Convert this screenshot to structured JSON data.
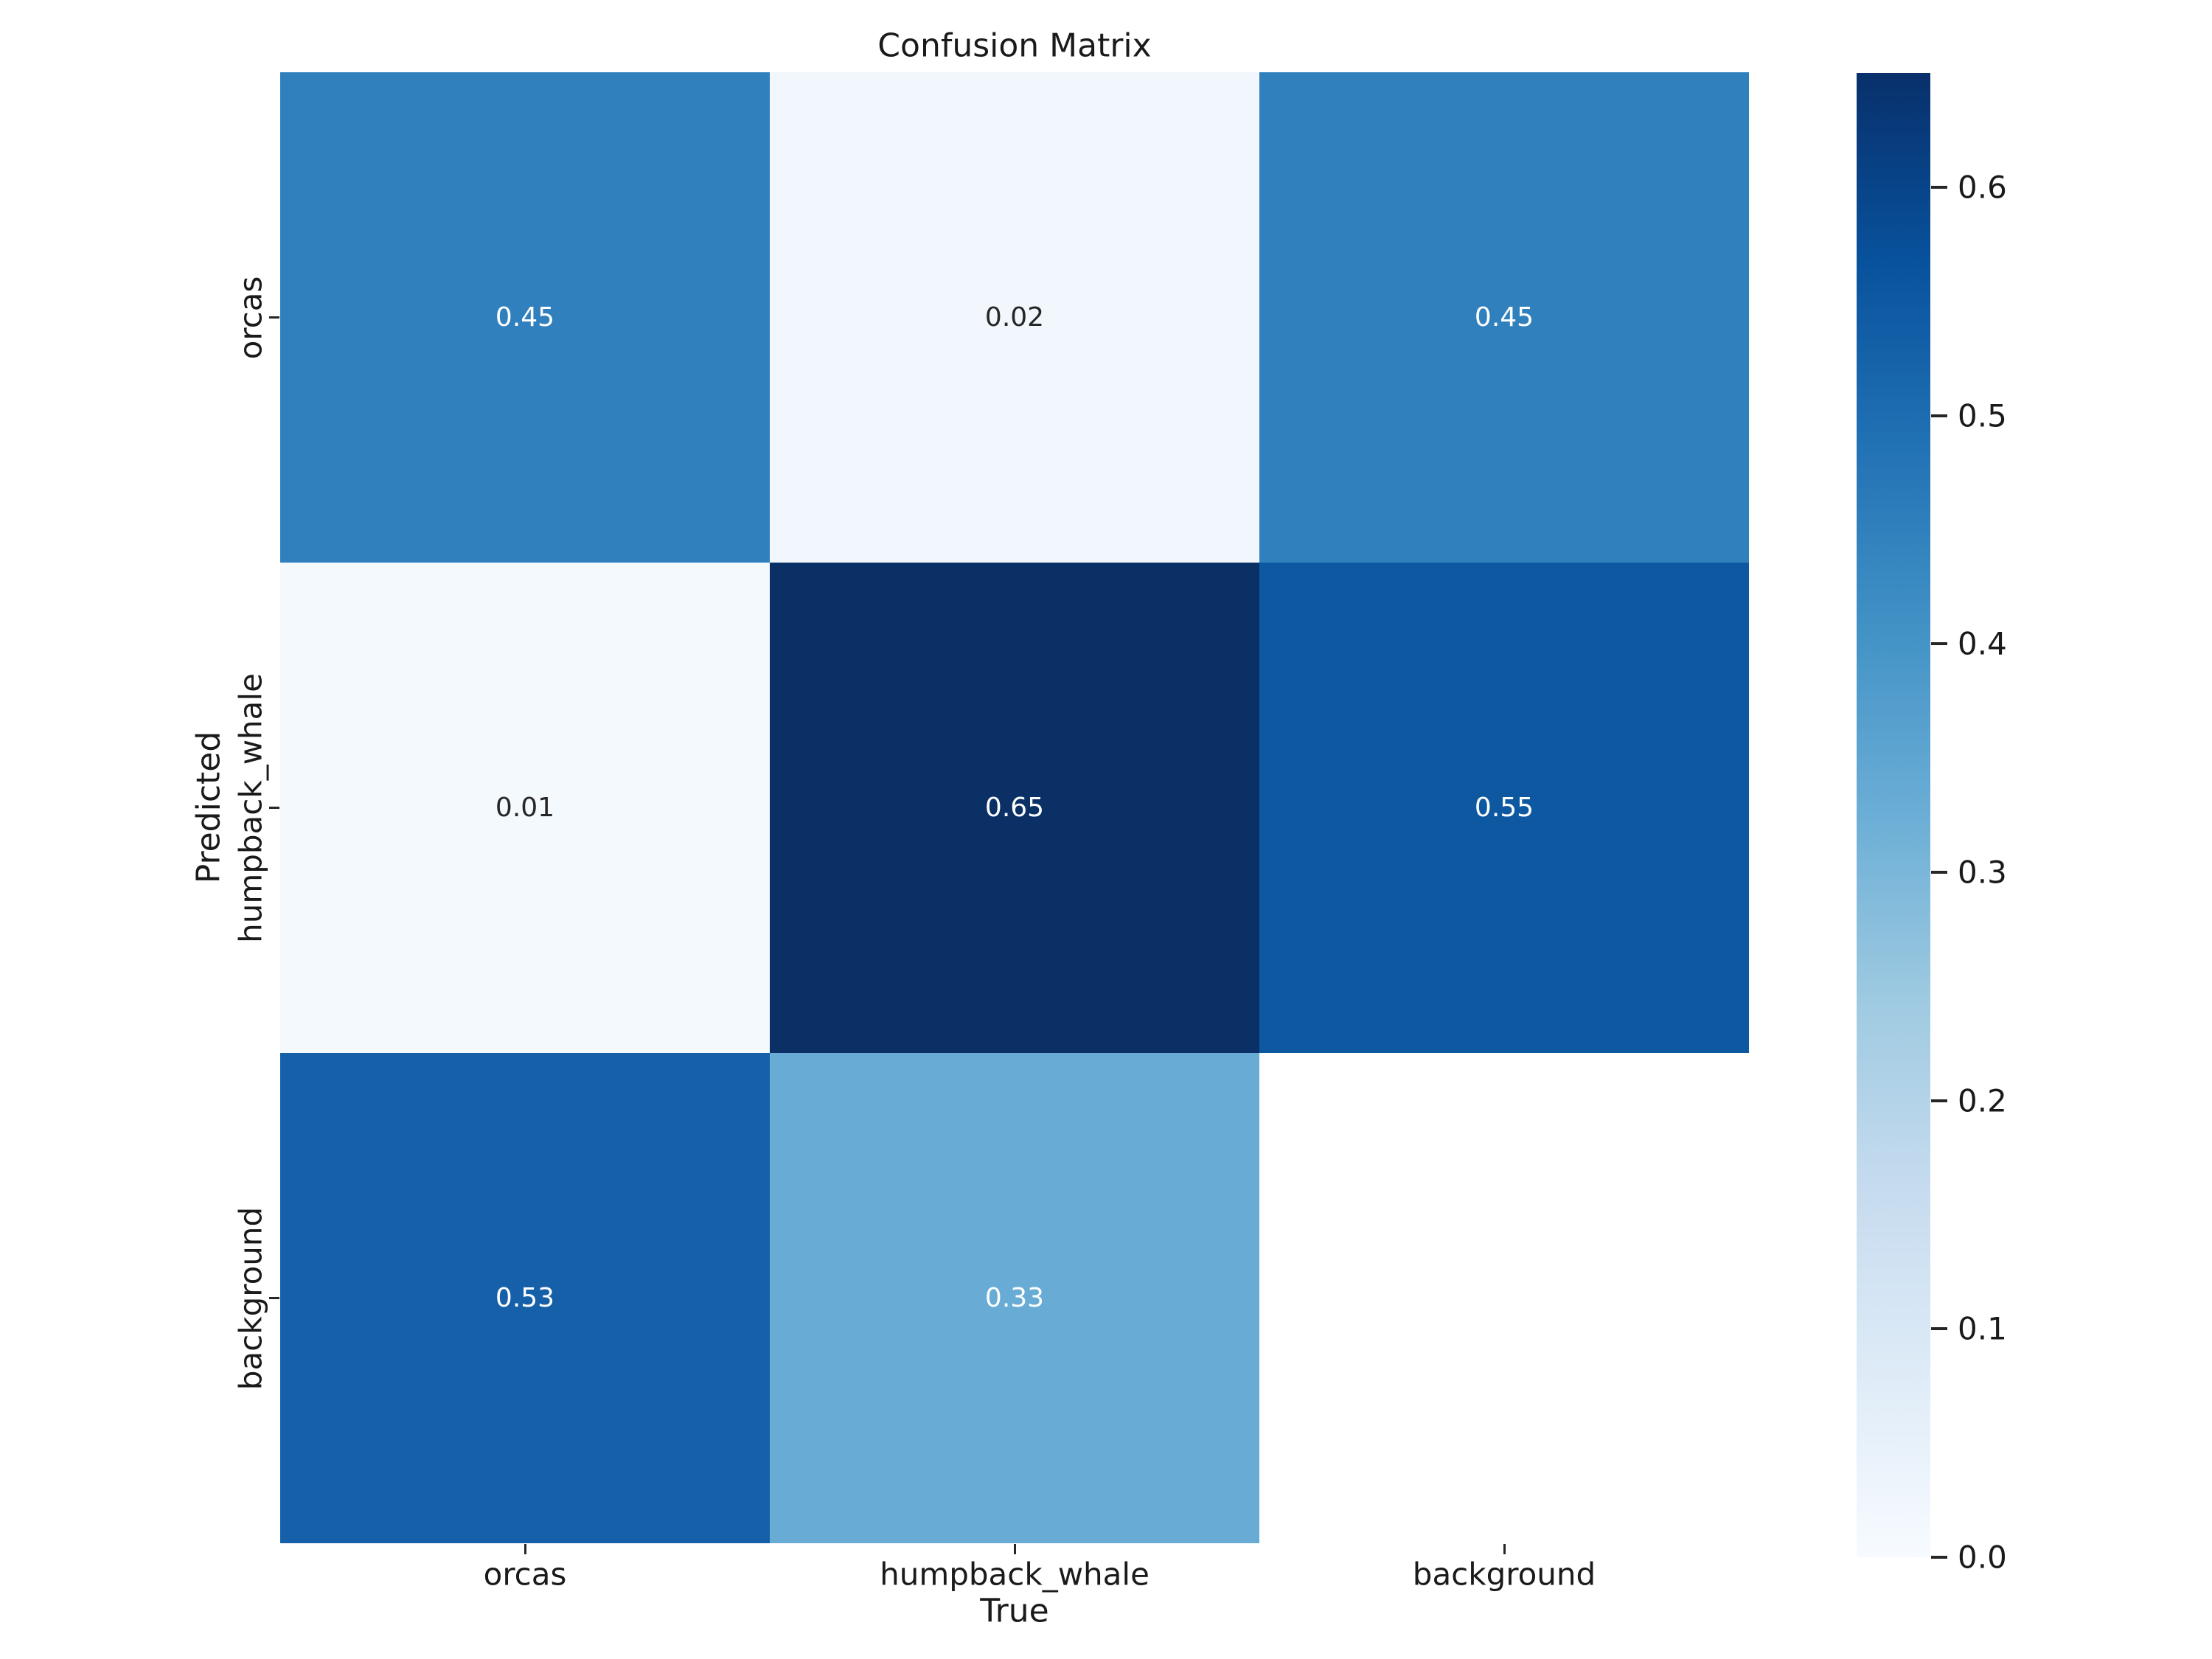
{
  "chart_data": {
    "type": "heatmap",
    "title": "Confusion Matrix",
    "xlabel": "True",
    "ylabel": "Predicted",
    "x_categories": [
      "orcas",
      "humpback_whale",
      "background"
    ],
    "y_categories": [
      "orcas",
      "humpback_whale",
      "background"
    ],
    "rows": [
      {
        "y_label": "orcas",
        "cells": [
          {
            "value": 0.45,
            "label": "0.45",
            "color": "#3080bd",
            "text_color": "#ffffff"
          },
          {
            "value": 0.02,
            "label": "0.02",
            "color": "#f1f7fd",
            "text_color": "#262626"
          },
          {
            "value": 0.45,
            "label": "0.45",
            "color": "#3080bd",
            "text_color": "#ffffff"
          }
        ]
      },
      {
        "y_label": "humpback_whale",
        "cells": [
          {
            "value": 0.01,
            "label": "0.01",
            "color": "#f4f9fe",
            "text_color": "#262626"
          },
          {
            "value": 0.65,
            "label": "0.65",
            "color": "#0a3066",
            "text_color": "#ffffff"
          },
          {
            "value": 0.55,
            "label": "0.55",
            "color": "#0e58a2",
            "text_color": "#ffffff"
          }
        ]
      },
      {
        "y_label": "background",
        "cells": [
          {
            "value": 0.53,
            "label": "0.53",
            "color": "#1560a8",
            "text_color": "#ffffff"
          },
          {
            "value": 0.33,
            "label": "0.33",
            "color": "#68acd5",
            "text_color": "#ffffff"
          },
          {
            "value": null,
            "label": "",
            "color": "#ffffff",
            "text_color": "#262626"
          }
        ]
      }
    ],
    "legend_position": "right-colorbar",
    "grid": false,
    "colorbar": {
      "vmin": 0.0,
      "vmax": 0.65,
      "tick_labels": [
        "0.6",
        "0.5",
        "0.4",
        "0.3",
        "0.2",
        "0.1",
        "0.0"
      ],
      "tick_values": [
        0.6,
        0.5,
        0.4,
        0.3,
        0.2,
        0.1,
        0.0
      ],
      "colormap_name": "Blues",
      "gradient_stops_top_to_bottom": [
        "#08306b",
        "#08519c",
        "#2171b5",
        "#4292c6",
        "#6baed6",
        "#9ecae1",
        "#c6dbef",
        "#deebf7",
        "#f7fbff"
      ]
    }
  }
}
